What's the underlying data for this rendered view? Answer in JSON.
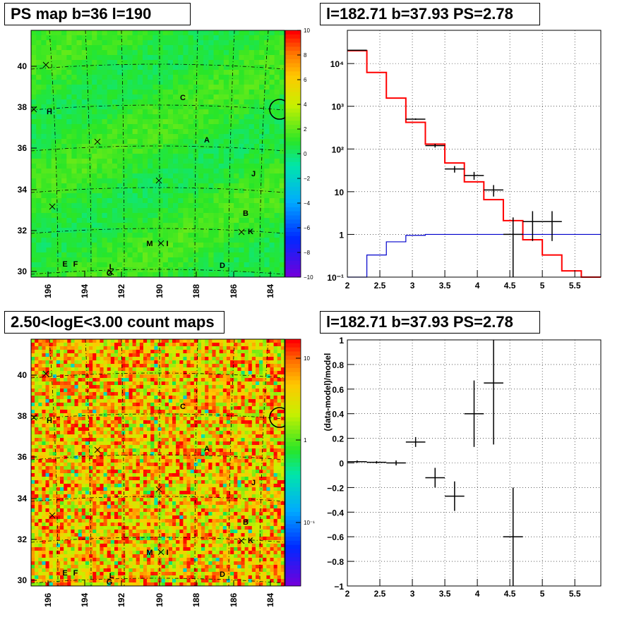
{
  "panels": {
    "ps_map": {
      "title": "PS map b=36 l=190",
      "xticks": [
        "196",
        "194",
        "192",
        "190",
        "188",
        "186",
        "184"
      ],
      "yticks": [
        "40",
        "38",
        "36",
        "34",
        "32",
        "30"
      ],
      "colorbar": [
        "10",
        "8",
        "6",
        "4",
        "2",
        "0",
        "−2",
        "−4",
        "−6",
        "−8",
        "−10"
      ],
      "sources": [
        {
          "label": "C",
          "x": 259,
          "y": 142
        },
        {
          "label": "A",
          "x": 293,
          "y": 202
        },
        {
          "label": "H",
          "x": 70,
          "y": 162
        },
        {
          "label": "J",
          "x": 359,
          "y": 250
        },
        {
          "label": "B",
          "x": 348,
          "y": 306
        },
        {
          "label": "K",
          "x": 355,
          "y": 332
        },
        {
          "label": "M",
          "x": 212,
          "y": 349
        },
        {
          "label": "I",
          "x": 237,
          "y": 349
        },
        {
          "label": "E",
          "x": 92,
          "y": 378
        },
        {
          "label": "F",
          "x": 107,
          "y": 378
        },
        {
          "label": "L",
          "x": 158,
          "y": 382
        },
        {
          "label": "G",
          "x": 155,
          "y": 391
        },
        {
          "label": "D",
          "x": 315,
          "y": 380
        }
      ]
    },
    "count_map": {
      "title": "2.50<logE<3.00 count maps",
      "xticks": [
        "196",
        "194",
        "192",
        "190",
        "188",
        "186",
        "184"
      ],
      "yticks": [
        "40",
        "38",
        "36",
        "34",
        "32",
        "30"
      ],
      "colorbar": [
        "10",
        "1",
        "10⁻¹"
      ]
    },
    "spectrum": {
      "title": "l=182.71 b=37.93 PS=2.78",
      "xticks": [
        "2",
        "2.5",
        "3",
        "3.5",
        "4",
        "4.5",
        "5",
        "5.5"
      ],
      "yticks": [
        "10⁴",
        "10³",
        "10²",
        "10",
        "1",
        "10⁻¹"
      ]
    },
    "residual": {
      "title": "l=182.71 b=37.93 PS=2.78",
      "ylabel": "(data-model)/model",
      "xticks": [
        "2",
        "2.5",
        "3",
        "3.5",
        "4",
        "4.5",
        "5",
        "5.5"
      ],
      "yticks": [
        "1",
        "0.8",
        "0.6",
        "0.4",
        "0.2",
        "0",
        "−0.2",
        "−0.4",
        "−0.6",
        "−0.8",
        "−1"
      ]
    }
  },
  "chart_data": [
    {
      "type": "heatmap",
      "title": "PS map b=36 l=190",
      "xlabel": "",
      "ylabel": "",
      "x_range": [
        197.5,
        182.5
      ],
      "y_range": [
        29.8,
        41.6
      ],
      "z_range": [
        -10,
        10
      ],
      "colorscale": "rainbow",
      "typical_value": 0.5,
      "source_labels": [
        "C",
        "A",
        "H",
        "J",
        "B",
        "K",
        "M",
        "I",
        "E",
        "F",
        "L",
        "G",
        "D"
      ],
      "circle_marker": {
        "l": 182.71,
        "b": 37.93
      }
    },
    {
      "type": "heatmap",
      "title": "2.50<logE<3.00 count maps",
      "x_range": [
        197.5,
        182.5
      ],
      "y_range": [
        29.8,
        41.6
      ],
      "z_scale": "log",
      "z_range": [
        0.02,
        20
      ],
      "colorscale": "rainbow",
      "typical_value": 2,
      "circle_marker": {
        "l": 182.71,
        "b": 37.93
      }
    },
    {
      "type": "line",
      "title": "l=182.71 b=37.93 PS=2.78",
      "xlim": [
        2,
        5.9
      ],
      "ylim": [
        0.1,
        60000
      ],
      "yscale": "log",
      "grid": true,
      "series": [
        {
          "color": "#ff0000",
          "style": "step",
          "edges": [
            2.0,
            2.3,
            2.6,
            2.9,
            3.2,
            3.5,
            3.8,
            4.1,
            4.4,
            4.7,
            5.0,
            5.3,
            5.6,
            5.9
          ],
          "values": [
            20000,
            6200,
            1550,
            420,
            130,
            47,
            17,
            6.5,
            2.1,
            0.75,
            0.33,
            0.14,
            0.1
          ]
        },
        {
          "color": "#0000cc",
          "style": "step",
          "edges": [
            2.0,
            2.3,
            2.6,
            2.9,
            3.2,
            3.5,
            3.8,
            4.1,
            4.4,
            4.7,
            5.0,
            5.3,
            5.6,
            5.9
          ],
          "values": [
            0.1,
            0.33,
            0.67,
            0.95,
            1,
            1,
            1,
            1,
            1,
            1,
            1,
            1,
            1
          ]
        },
        {
          "color": "#000000",
          "style": "errorbar",
          "points": [
            {
              "x": 2.15,
              "y": 20500,
              "xerr": 0.15,
              "ylo": 20300,
              "yhi": 20700
            },
            {
              "x": 3.05,
              "y": 500,
              "xerr": 0.15,
              "ylo": 480,
              "yhi": 520
            },
            {
              "x": 3.35,
              "y": 120,
              "xerr": 0.15,
              "ylo": 108,
              "yhi": 132
            },
            {
              "x": 3.65,
              "y": 34,
              "xerr": 0.15,
              "ylo": 28,
              "yhi": 40
            },
            {
              "x": 3.95,
              "y": 24,
              "xerr": 0.15,
              "ylo": 19,
              "yhi": 29
            },
            {
              "x": 4.25,
              "y": 11,
              "xerr": 0.15,
              "ylo": 7.7,
              "yhi": 14.3
            },
            {
              "x": 4.55,
              "y": 1,
              "xerr": 0.15,
              "ylo": 0.1,
              "yhi": 2.5
            },
            {
              "x": 4.85,
              "y": 2,
              "xerr": 0.15,
              "ylo": 0.7,
              "yhi": 3.5
            },
            {
              "x": 5.15,
              "y": 2,
              "xerr": 0.15,
              "ylo": 0.7,
              "yhi": 3.5
            }
          ]
        }
      ]
    },
    {
      "type": "scatter",
      "title": "l=182.71 b=37.93 PS=2.78",
      "ylabel": "(data-model)/model",
      "xlim": [
        2,
        5.9
      ],
      "ylim": [
        -1,
        1
      ],
      "grid": true,
      "points": [
        {
          "x": 2.15,
          "y": 0.01,
          "xerr": 0.15,
          "yerr": 0.01
        },
        {
          "x": 2.45,
          "y": 0.005,
          "xerr": 0.15,
          "yerr": 0.01
        },
        {
          "x": 2.75,
          "y": 0.0,
          "xerr": 0.15,
          "yerr": 0.02
        },
        {
          "x": 3.05,
          "y": 0.17,
          "xerr": 0.15,
          "yerr": 0.04
        },
        {
          "x": 3.35,
          "y": -0.12,
          "xerr": 0.15,
          "yerr": 0.08
        },
        {
          "x": 3.65,
          "y": -0.27,
          "xerr": 0.15,
          "yerr": 0.12
        },
        {
          "x": 3.95,
          "y": 0.4,
          "xerr": 0.15,
          "yerr": 0.27
        },
        {
          "x": 4.25,
          "y": 0.65,
          "xerr": 0.15,
          "yerr": 0.5
        },
        {
          "x": 4.55,
          "y": -0.6,
          "xerr": 0.15,
          "yerr": 0.4
        }
      ]
    }
  ]
}
